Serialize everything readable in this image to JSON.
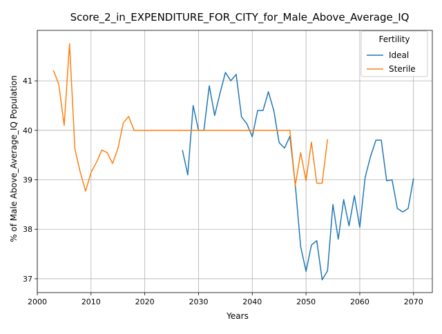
{
  "chart_data": {
    "type": "line",
    "title": "Score_2_in_EXPENDITURE_FOR_CITY_for_Male_Above_Average_IQ",
    "xlabel": "Years",
    "ylabel": "% of Male Above_Average_IQ Population",
    "xlim": [
      2000,
      2073.5
    ],
    "ylim": [
      36.72,
      42.02
    ],
    "xticks": [
      2000,
      2010,
      2020,
      2030,
      2040,
      2050,
      2060,
      2070
    ],
    "yticks": [
      37,
      38,
      39,
      40,
      41
    ],
    "grid": true,
    "legend": {
      "title": "Fertility",
      "position": "top-right"
    },
    "series": [
      {
        "name": "Ideal",
        "color": "#1f77b4",
        "x": [
          2027,
          2028,
          2029,
          2030,
          2031,
          2032,
          2033,
          2034,
          2035,
          2036,
          2037,
          2038,
          2039,
          2040,
          2041,
          2042,
          2043,
          2044,
          2045,
          2046,
          2047,
          2048,
          2049,
          2050,
          2051,
          2052,
          2053,
          2054,
          2055,
          2056,
          2057,
          2058,
          2059,
          2060,
          2061,
          2062,
          2063,
          2064,
          2065,
          2066,
          2067,
          2068,
          2069,
          2070
        ],
        "values": [
          39.6,
          39.1,
          40.5,
          40.0,
          40.0,
          40.9,
          40.3,
          40.75,
          41.17,
          41.0,
          41.13,
          40.27,
          40.13,
          39.87,
          40.4,
          40.4,
          40.78,
          40.4,
          39.75,
          39.64,
          39.88,
          38.9,
          37.65,
          37.15,
          37.68,
          37.77,
          36.98,
          37.16,
          38.5,
          37.8,
          38.6,
          38.07,
          38.68,
          38.04,
          39.05,
          39.47,
          39.8,
          39.8,
          38.98,
          39.0,
          38.42,
          38.35,
          38.42,
          39.03
        ]
      },
      {
        "name": "Sterile",
        "color": "#ff7f0e",
        "x": [
          2003,
          2004,
          2005,
          2006,
          2007,
          2008,
          2009,
          2010,
          2011,
          2012,
          2013,
          2014,
          2015,
          2016,
          2017,
          2018,
          2019,
          2020,
          2021,
          2022,
          2023,
          2024,
          2025,
          2026,
          2027,
          2028,
          2029,
          2030,
          2031,
          2032,
          2033,
          2034,
          2035,
          2036,
          2037,
          2038,
          2039,
          2040,
          2041,
          2042,
          2043,
          2044,
          2045,
          2046,
          2047,
          2048,
          2049,
          2050,
          2051,
          2052,
          2053,
          2054
        ],
        "values": [
          41.21,
          40.93,
          40.1,
          41.75,
          39.62,
          39.15,
          38.77,
          39.15,
          39.35,
          39.6,
          39.55,
          39.33,
          39.63,
          40.15,
          40.28,
          40.0,
          40.0,
          40.0,
          40.0,
          40.0,
          40.0,
          40.0,
          40.0,
          40.0,
          40.0,
          40.0,
          40.0,
          40.0,
          40.0,
          40.0,
          40.0,
          40.0,
          40.0,
          40.0,
          40.0,
          40.0,
          40.0,
          40.0,
          40.0,
          40.0,
          40.0,
          40.0,
          40.0,
          40.0,
          40.0,
          38.88,
          39.55,
          38.98,
          39.76,
          38.93,
          38.93,
          39.82
        ]
      }
    ]
  }
}
